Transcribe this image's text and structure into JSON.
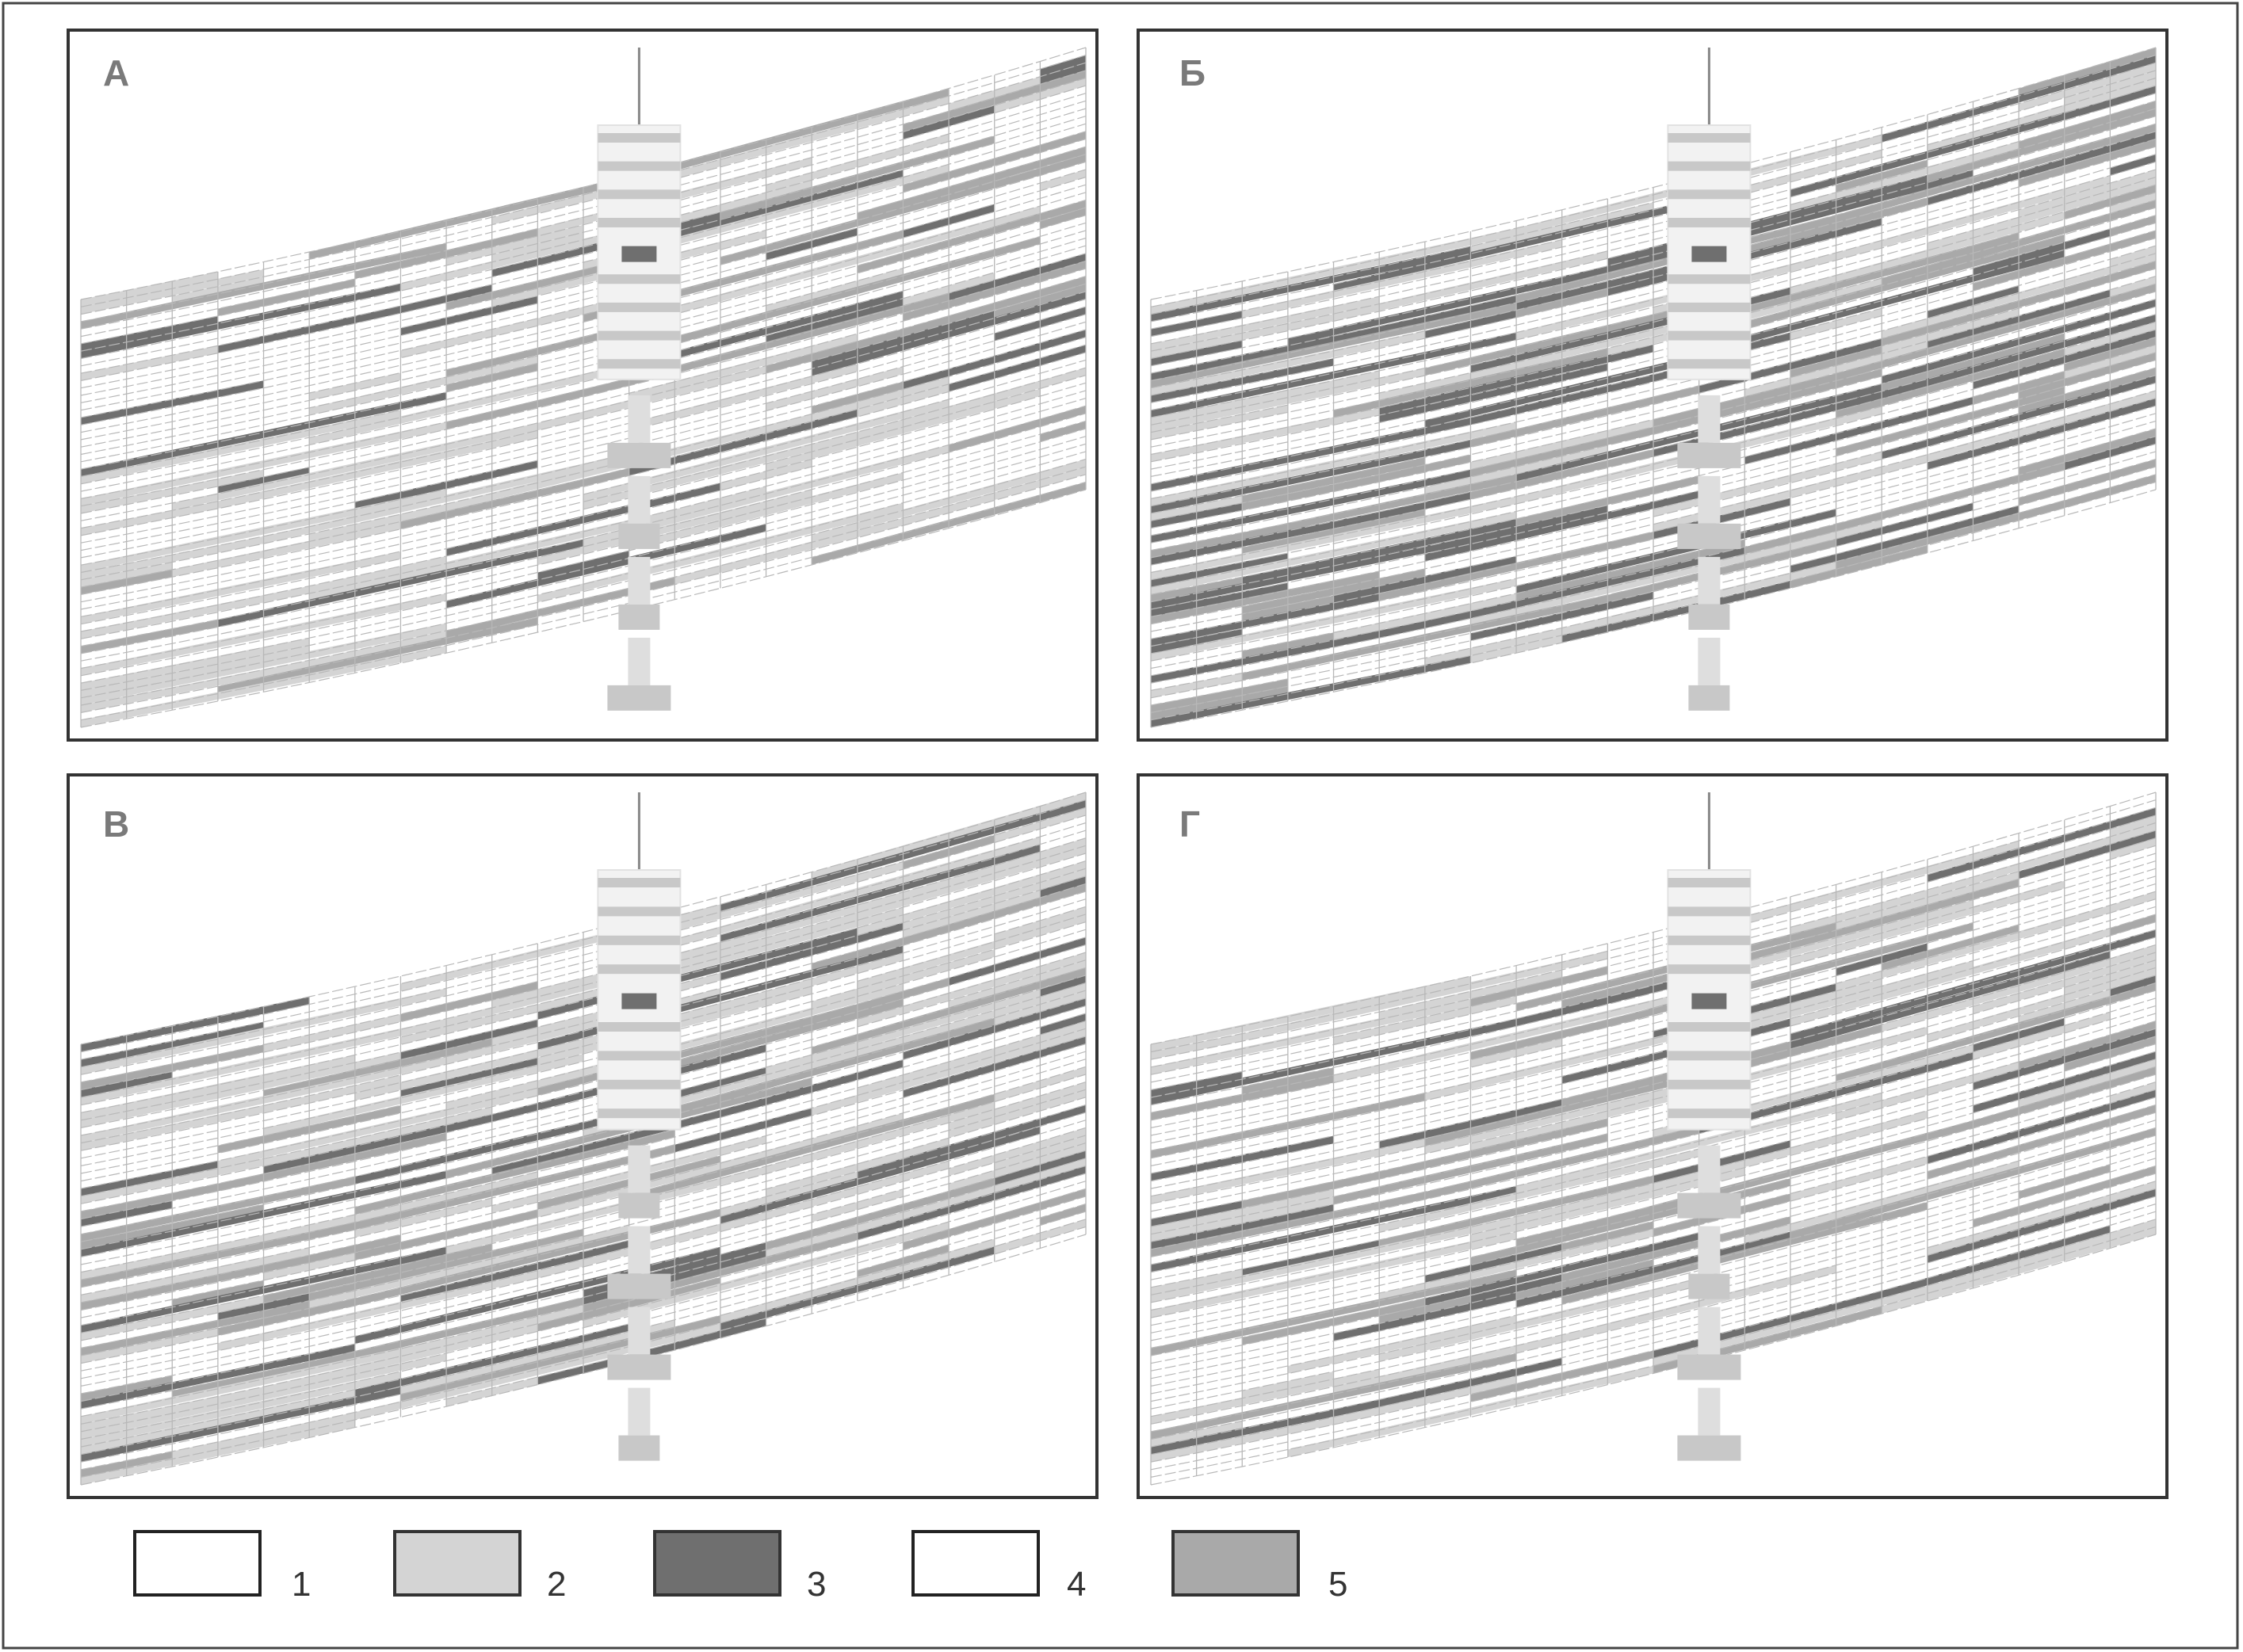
{
  "figure": {
    "panels": [
      {
        "id": "A",
        "label": "А",
        "seed": 11,
        "strong": 0.1,
        "gray": 0.18,
        "light": 0.2
      },
      {
        "id": "B",
        "label": "Б",
        "seed": 29,
        "strong": 0.2,
        "gray": 0.26,
        "light": 0.18
      },
      {
        "id": "V",
        "label": "В",
        "seed": 47,
        "strong": 0.14,
        "gray": 0.2,
        "light": 0.26
      },
      {
        "id": "G",
        "label": "Г",
        "seed": 71,
        "strong": 0.12,
        "gray": 0.18,
        "light": 0.22
      }
    ],
    "legend": [
      {
        "label": "1",
        "fill": "#ffffff",
        "stroke": "#222222"
      },
      {
        "label": "2",
        "fill": "#d4d4d4",
        "stroke": "#333333"
      },
      {
        "label": "3",
        "fill": "#6f6f6f",
        "stroke": "#333333"
      },
      {
        "label": "4",
        "fill": "#ffffff",
        "stroke": "#222222"
      },
      {
        "label": "5",
        "fill": "#a9a9a9",
        "stroke": "#333333"
      }
    ],
    "colors": {
      "frame": "#333333",
      "outer_border": "#444444",
      "grid": "#b8b8b8",
      "well": "#dedede",
      "well_band": "#c8c8c8"
    }
  }
}
